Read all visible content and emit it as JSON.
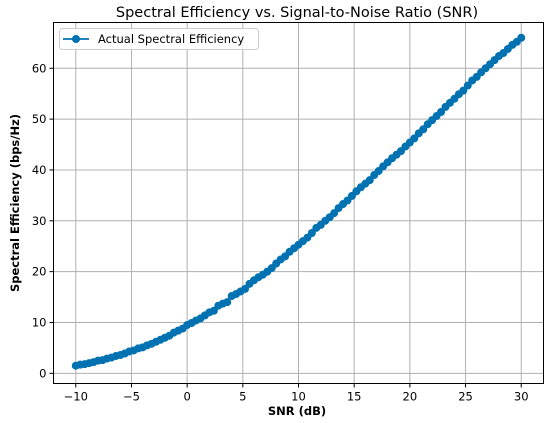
{
  "chart_data": {
    "type": "line",
    "title": "Spectral Efficiency vs. Signal-to-Noise Ratio (SNR)",
    "xlabel": "SNR (dB)",
    "ylabel": "Spectral Efficiency (bps/Hz)",
    "xlim": [
      -12,
      32
    ],
    "ylim": [
      -2,
      69
    ],
    "xticks": [
      -10,
      -5,
      0,
      5,
      10,
      15,
      20,
      25,
      30
    ],
    "yticks": [
      0,
      10,
      20,
      30,
      40,
      50,
      60
    ],
    "grid": true,
    "legend_position": "upper-left",
    "series": [
      {
        "name": "Actual Spectral Efficiency",
        "color": "#0072B2",
        "marker": "circle",
        "x": [
          -10.0,
          -9.6,
          -9.2,
          -8.8,
          -8.4,
          -8.0,
          -7.6,
          -7.2,
          -6.8,
          -6.4,
          -6.0,
          -5.6,
          -5.2,
          -4.8,
          -4.4,
          -4.0,
          -3.6,
          -3.2,
          -2.8,
          -2.4,
          -2.0,
          -1.6,
          -1.2,
          -0.8,
          -0.4,
          0.0,
          0.4,
          0.8,
          1.2,
          1.6,
          2.0,
          2.4,
          2.8,
          3.2,
          3.6,
          4.0,
          4.4,
          4.8,
          5.2,
          5.6,
          6.0,
          6.4,
          6.8,
          7.2,
          7.6,
          8.0,
          8.4,
          8.8,
          9.2,
          9.6,
          10.0,
          10.4,
          10.8,
          11.2,
          11.6,
          12.0,
          12.4,
          12.8,
          13.2,
          13.6,
          14.0,
          14.4,
          14.8,
          15.2,
          15.6,
          16.0,
          16.4,
          16.8,
          17.2,
          17.6,
          18.0,
          18.4,
          18.8,
          19.2,
          19.6,
          20.0,
          20.4,
          20.8,
          21.2,
          21.6,
          22.0,
          22.4,
          22.8,
          23.2,
          23.6,
          24.0,
          24.4,
          24.8,
          25.2,
          25.6,
          26.0,
          26.4,
          26.8,
          27.2,
          27.6,
          28.0,
          28.4,
          28.8,
          29.2,
          29.6,
          30.0
        ],
        "y": [
          1.5,
          1.7,
          1.8,
          2.0,
          2.2,
          2.5,
          2.6,
          2.9,
          3.1,
          3.4,
          3.6,
          3.9,
          4.3,
          4.5,
          4.9,
          5.1,
          5.5,
          5.8,
          6.2,
          6.6,
          7.0,
          7.4,
          8.0,
          8.4,
          8.8,
          9.5,
          9.9,
          10.4,
          10.8,
          11.4,
          12.0,
          12.3,
          13.3,
          13.7,
          14.0,
          15.2,
          15.6,
          16.1,
          16.6,
          17.6,
          18.3,
          18.9,
          19.4,
          20.0,
          20.7,
          21.6,
          22.4,
          23.0,
          23.9,
          24.6,
          25.3,
          26.0,
          26.7,
          27.6,
          28.6,
          29.2,
          30.0,
          30.7,
          31.5,
          32.5,
          33.3,
          34.0,
          34.9,
          35.8,
          36.6,
          37.3,
          38.0,
          39.0,
          39.8,
          40.7,
          41.5,
          42.3,
          43.0,
          43.7,
          44.6,
          45.4,
          46.2,
          47.2,
          48.0,
          49.0,
          49.8,
          50.6,
          51.4,
          52.4,
          53.2,
          54.0,
          54.9,
          55.6,
          56.6,
          57.6,
          58.3,
          59.2,
          60.0,
          60.8,
          61.6,
          62.4,
          63.0,
          63.8,
          64.6,
          65.2,
          66.0
        ]
      }
    ]
  }
}
